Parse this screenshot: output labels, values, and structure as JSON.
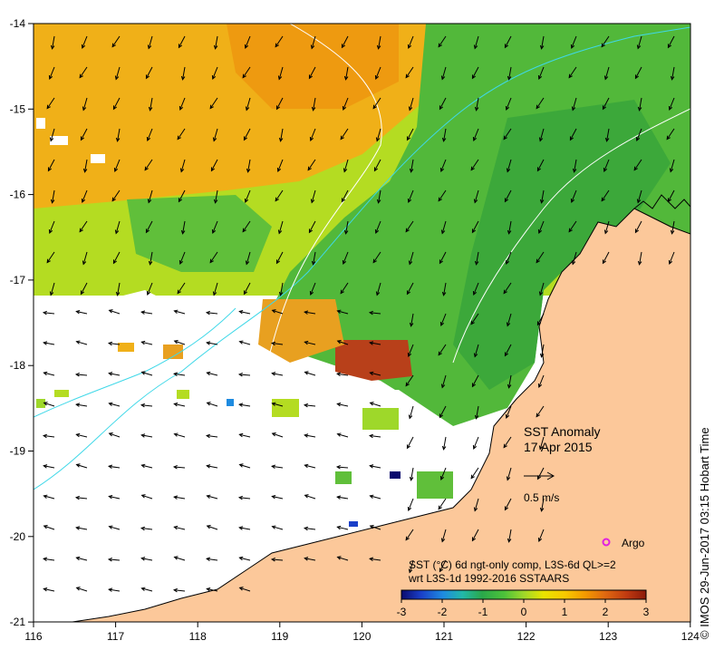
{
  "map": {
    "title_line1": "SST Anomaly",
    "title_line2": "17 Apr 2015",
    "scale_arrow_label": "0.5 m/s",
    "argo_label": "Argo",
    "caption_line1": "SST (°C) 6d ngt-only comp, L3S-6d QL>=2",
    "caption_line2": "wrt L3S-1d 1992-2016 SSTAARS",
    "credit": "© IMOS 29-Jun-2017 03:15 Hobart Time",
    "x_ticks": [
      "116",
      "117",
      "118",
      "119",
      "120",
      "121",
      "122",
      "123",
      "124"
    ],
    "y_ticks": [
      "-14",
      "-15",
      "-16",
      "-17",
      "-18",
      "-19",
      "-20",
      "-21"
    ],
    "colorbar_ticks": [
      "-3",
      "-2",
      "-1",
      "0",
      "1",
      "2",
      "3"
    ],
    "colors": {
      "land": "#fcc89a",
      "coast": "#000000",
      "argo": "#e020e0",
      "bathy_cyan": "#3fd8e8",
      "bathy_white": "#ffffff"
    },
    "colorbar_colors": [
      "#0a0a6e",
      "#1a3fc8",
      "#1e8be0",
      "#22b8a8",
      "#2aa84a",
      "#4cc23a",
      "#9ed82a",
      "#e8e400",
      "#f7c800",
      "#f39a00",
      "#e06a10",
      "#c03a10",
      "#8b1a0a"
    ]
  }
}
